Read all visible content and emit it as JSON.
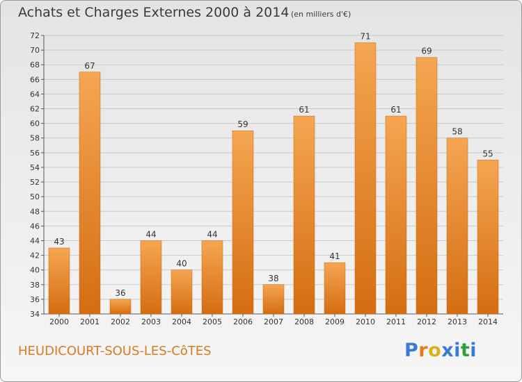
{
  "header": {
    "title": "Achats et Charges Externes 2000 à 2014",
    "subtitle": "(en milliers d'€)"
  },
  "footer": {
    "commune": "HEUDICOURT-SOUS-LES-CôTES",
    "logo_letters": [
      "P",
      "r",
      "o",
      "x",
      "i",
      "t",
      "i"
    ],
    "logo_colors": [
      "#3a7bd5",
      "#e8771e",
      "#d9b21a",
      "#3a7bd5",
      "#3a7bd5",
      "#2e9e3e",
      "#3a7bd5"
    ]
  },
  "colors": {
    "bar_light": "#f5a651",
    "bar_dark": "#d46d12",
    "grid": "#c8c8c8",
    "axis_text": "#333333"
  },
  "chart_data": {
    "type": "bar",
    "categories": [
      "2000",
      "2001",
      "2002",
      "2003",
      "2004",
      "2005",
      "2006",
      "2007",
      "2008",
      "2009",
      "2010",
      "2011",
      "2012",
      "2013",
      "2014"
    ],
    "values": [
      43,
      67,
      36,
      44,
      40,
      44,
      59,
      38,
      61,
      41,
      71,
      61,
      69,
      58,
      55
    ],
    "title": "Achats et Charges Externes 2000 à 2014",
    "xlabel": "",
    "ylabel": "",
    "ylim": [
      34,
      72
    ],
    "yticks": [
      34,
      36,
      38,
      40,
      42,
      44,
      46,
      48,
      50,
      52,
      54,
      56,
      58,
      60,
      62,
      64,
      66,
      68,
      70,
      72
    ],
    "grid": true,
    "data_labels": true
  }
}
